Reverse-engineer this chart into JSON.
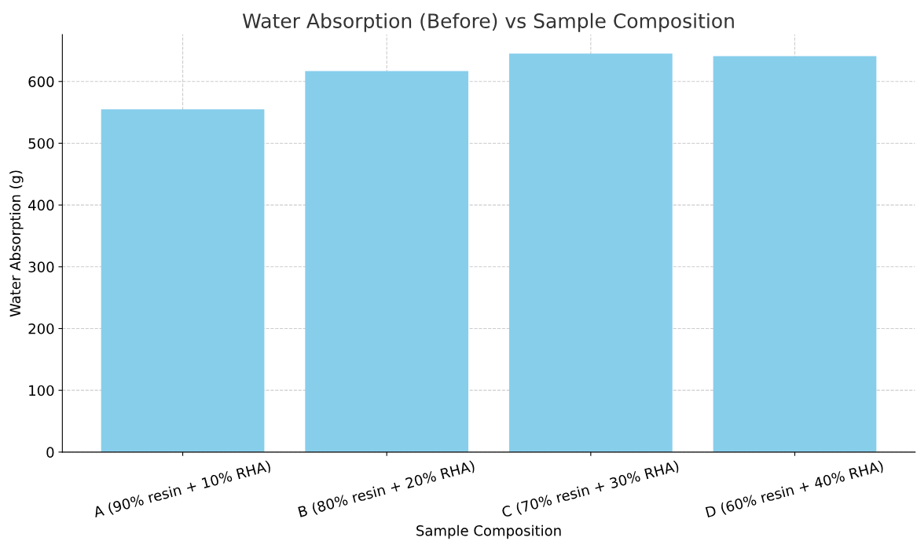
{
  "chart_data": {
    "type": "bar",
    "title": "Water Absorption (Before) vs Sample Composition",
    "xlabel": "Sample Composition",
    "ylabel": "Water Absorption (g)",
    "categories": [
      "A (90% resin + 10% RHA)",
      "B (80% resin + 20% RHA)",
      "C (70% resin + 30% RHA)",
      "D (60% resin + 40% RHA)"
    ],
    "values": [
      555,
      617,
      645,
      641
    ],
    "color": "#87ceeb",
    "ylim": [
      0,
      676
    ],
    "yticks": [
      0,
      100,
      200,
      300,
      400,
      500,
      600
    ],
    "grid": true
  }
}
